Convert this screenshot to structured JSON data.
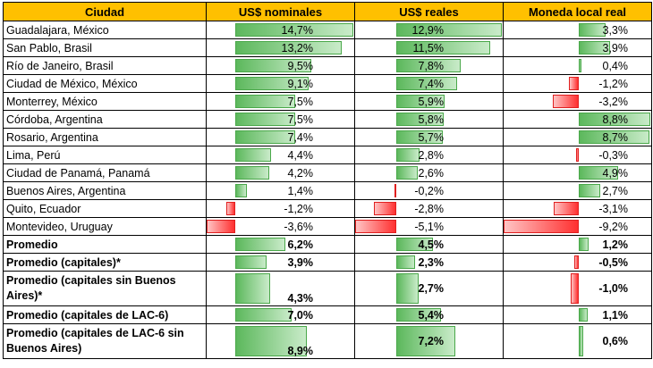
{
  "header": {
    "city": "Ciudad",
    "nominal": "US$ nominales",
    "real": "US$ reales",
    "local": "Moneda local real"
  },
  "rows": [
    {
      "city": "Guadalajara, México",
      "bold": false,
      "nominal": 14.7,
      "nominal_label": "14,7%",
      "real": 12.9,
      "real_label": "12,9%",
      "local": 3.3,
      "local_label": "3,3%"
    },
    {
      "city": "San Pablo, Brasil",
      "bold": false,
      "nominal": 13.2,
      "nominal_label": "13,2%",
      "real": 11.5,
      "real_label": "11,5%",
      "local": 3.9,
      "local_label": "3,9%"
    },
    {
      "city": "Río de Janeiro, Brasil",
      "bold": false,
      "nominal": 9.5,
      "nominal_label": "9,5%",
      "real": 7.8,
      "real_label": "7,8%",
      "local": 0.4,
      "local_label": "0,4%"
    },
    {
      "city": "Ciudad de México, México",
      "bold": false,
      "nominal": 9.1,
      "nominal_label": "9,1%",
      "real": 7.4,
      "real_label": "7,4%",
      "local": -1.2,
      "local_label": "-1,2%"
    },
    {
      "city": "Monterrey, México",
      "bold": false,
      "nominal": 7.5,
      "nominal_label": "7,5%",
      "real": 5.9,
      "real_label": "5,9%",
      "local": -3.2,
      "local_label": "-3,2%"
    },
    {
      "city": "Córdoba, Argentina",
      "bold": false,
      "nominal": 7.5,
      "nominal_label": "7,5%",
      "real": 5.8,
      "real_label": "5,8%",
      "local": 8.8,
      "local_label": "8,8%"
    },
    {
      "city": "Rosario, Argentina",
      "bold": false,
      "nominal": 7.4,
      "nominal_label": "7,4%",
      "real": 5.7,
      "real_label": "5,7%",
      "local": 8.7,
      "local_label": "8,7%"
    },
    {
      "city": "Lima, Perú",
      "bold": false,
      "nominal": 4.4,
      "nominal_label": "4,4%",
      "real": 2.8,
      "real_label": "2,8%",
      "local": -0.3,
      "local_label": "-0,3%"
    },
    {
      "city": "Ciudad de Panamá, Panamá",
      "bold": false,
      "nominal": 4.2,
      "nominal_label": "4,2%",
      "real": 2.6,
      "real_label": "2,6%",
      "local": 4.9,
      "local_label": "4,9%"
    },
    {
      "city": "Buenos Aires, Argentina",
      "bold": false,
      "nominal": 1.4,
      "nominal_label": "1,4%",
      "real": -0.2,
      "real_label": "-0,2%",
      "local": 2.7,
      "local_label": "2,7%"
    },
    {
      "city": "Quito, Ecuador",
      "bold": false,
      "nominal": -1.2,
      "nominal_label": "-1,2%",
      "real": -2.8,
      "real_label": "-2,8%",
      "local": -3.1,
      "local_label": "-3,1%"
    },
    {
      "city": "Montevideo, Uruguay",
      "bold": false,
      "nominal": -3.6,
      "nominal_label": "-3,6%",
      "real": -5.1,
      "real_label": "-5,1%",
      "local": -9.2,
      "local_label": "-9,2%"
    },
    {
      "city": "Promedio",
      "bold": true,
      "nominal": 6.2,
      "nominal_label": "6,2%",
      "real": 4.5,
      "real_label": "4,5%",
      "local": 1.2,
      "local_label": "1,2%"
    },
    {
      "city": "Promedio (capitales)*",
      "bold": true,
      "nominal": 3.9,
      "nominal_label": "3,9%",
      "real": 2.3,
      "real_label": "2,3%",
      "local": -0.5,
      "local_label": "-0,5%"
    },
    {
      "city": "Promedio (capitales sin Buenos Aires)*",
      "bold": true,
      "tall": true,
      "nominal": 4.3,
      "nominal_label": "4,3%",
      "real": 2.7,
      "real_label": "2,7%",
      "local": -1.0,
      "local_label": "-1,0%"
    },
    {
      "city": "Promedio (capitales de LAC-6)",
      "bold": true,
      "nominal": 7.0,
      "nominal_label": "7,0%",
      "real": 5.4,
      "real_label": "5,4%",
      "local": 1.1,
      "local_label": "1,1%"
    },
    {
      "city": "Promedio (capitales de LAC-6 sin Buenos Aires)",
      "bold": true,
      "tall": true,
      "nominal": 8.9,
      "nominal_label": "8,9%",
      "real": 7.2,
      "real_label": "7,2%",
      "local": 0.6,
      "local_label": "0,6%"
    }
  ],
  "scales": {
    "nominal": {
      "min": -3.6,
      "max": 14.7
    },
    "real": {
      "min": -5.1,
      "max": 12.9
    },
    "local": {
      "min": -9.2,
      "max": 8.8
    }
  },
  "colors": {
    "header_bg": "#ffc000",
    "positive_bar": "#5cb85c",
    "negative_bar": "#ff3030"
  }
}
